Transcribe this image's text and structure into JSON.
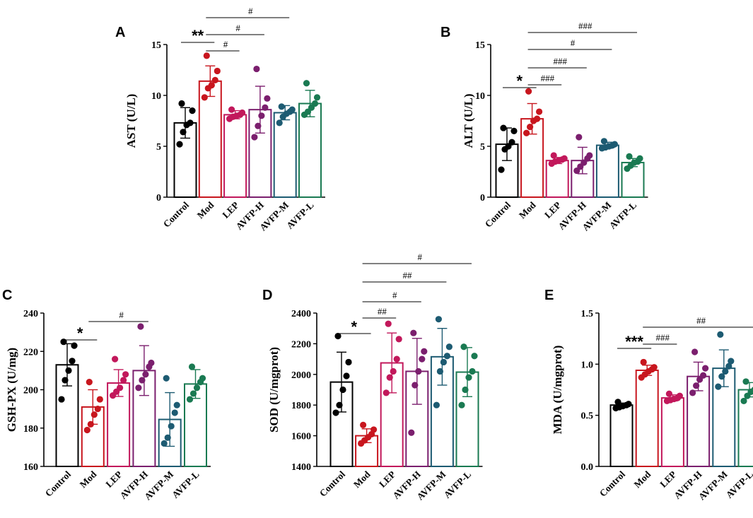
{
  "groups": [
    "Control",
    "Mod",
    "LEP",
    "AVFP-H",
    "AVFP-M",
    "AVFP-L"
  ],
  "colors": [
    "#000000",
    "#c8161e",
    "#c2185b",
    "#7b1f6e",
    "#1d5b72",
    "#1a7a52"
  ],
  "chart_data": [
    {
      "id": "A",
      "type": "bar",
      "letter": "A",
      "ylabel": "AST (U/L)",
      "ylim": [
        0,
        15
      ],
      "yticks": [
        0,
        5,
        10,
        15
      ],
      "ytick_labels": [
        "0",
        "5",
        "10",
        "15"
      ],
      "categories": [
        "Control",
        "Mod",
        "LEP",
        "AVFP-H",
        "AVFP-M",
        "AVFP-L"
      ],
      "means": [
        7.3,
        11.4,
        8.1,
        8.6,
        8.3,
        9.2
      ],
      "sds": [
        1.5,
        1.5,
        0.4,
        2.3,
        0.7,
        1.3
      ],
      "points": [
        [
          5.2,
          6.4,
          7.1,
          7.3,
          8.5,
          9.2
        ],
        [
          9.8,
          10.7,
          11.0,
          11.5,
          12.4,
          13.9
        ],
        [
          7.7,
          7.9,
          8.0,
          8.1,
          8.3,
          8.6
        ],
        [
          5.9,
          7.0,
          8.0,
          8.8,
          9.7,
          12.6
        ],
        [
          7.3,
          7.9,
          8.2,
          8.4,
          8.6,
          8.9
        ],
        [
          8.1,
          8.4,
          8.8,
          9.2,
          9.8,
          11.2
        ]
      ],
      "sig": [
        {
          "label": "**",
          "from": 0,
          "to": 1,
          "kind": "star"
        },
        {
          "label": "#",
          "from": 1,
          "to": 2,
          "kind": "hash"
        },
        {
          "label": "#",
          "from": 1,
          "to": 3,
          "kind": "hash"
        },
        {
          "label": "#",
          "from": 1,
          "to": 4,
          "kind": "hash"
        }
      ]
    },
    {
      "id": "B",
      "type": "bar",
      "letter": "B",
      "ylabel": "ALT (U/L)",
      "ylim": [
        0,
        15
      ],
      "yticks": [
        0,
        5,
        10,
        15
      ],
      "ytick_labels": [
        "0",
        "5",
        "10",
        "15"
      ],
      "categories": [
        "Control",
        "Mod",
        "LEP",
        "AVFP-H",
        "AVFP-M",
        "AVFP-L"
      ],
      "means": [
        5.2,
        7.7,
        3.6,
        3.6,
        5.1,
        3.4
      ],
      "sds": [
        1.6,
        1.5,
        0.3,
        1.3,
        0.3,
        0.4
      ],
      "points": [
        [
          2.7,
          4.7,
          5.0,
          5.4,
          6.5,
          6.8
        ],
        [
          6.3,
          6.9,
          7.5,
          7.7,
          8.4,
          10.4
        ],
        [
          3.3,
          3.5,
          3.6,
          3.7,
          3.8,
          4.1
        ],
        [
          2.6,
          3.0,
          3.4,
          3.8,
          4.1,
          5.9
        ],
        [
          4.8,
          4.9,
          5.0,
          5.1,
          5.2,
          5.5
        ],
        [
          2.8,
          3.1,
          3.4,
          3.5,
          3.8,
          4.0
        ]
      ],
      "sig": [
        {
          "label": "*",
          "from": 0,
          "to": 1,
          "kind": "star"
        },
        {
          "label": "###",
          "from": 1,
          "to": 2,
          "kind": "hash"
        },
        {
          "label": "###",
          "from": 1,
          "to": 3,
          "kind": "hash"
        },
        {
          "label": "#",
          "from": 1,
          "to": 4,
          "kind": "hash"
        },
        {
          "label": "###",
          "from": 1,
          "to": 5,
          "kind": "hash"
        }
      ]
    },
    {
      "id": "C",
      "type": "bar",
      "letter": "C",
      "ylabel": "GSH-PX (U/mg)",
      "ylim": [
        160,
        240
      ],
      "yticks": [
        160,
        180,
        200,
        220,
        240
      ],
      "ytick_labels": [
        "160",
        "180",
        "200",
        "220",
        "240"
      ],
      "categories": [
        "Control",
        "Mod",
        "LEP",
        "AVFP-H",
        "AVFP-M",
        "AVFP-L"
      ],
      "means": [
        213,
        191,
        203.5,
        210,
        184.5,
        203
      ],
      "sds": [
        11,
        9,
        7,
        13,
        14,
        7.5
      ],
      "points": [
        [
          195,
          205,
          210,
          215,
          223,
          225
        ],
        [
          179,
          182,
          187,
          190,
          195,
          204
        ],
        [
          197,
          199,
          201,
          205,
          208,
          216
        ],
        [
          201,
          205,
          208,
          212,
          214,
          233
        ],
        [
          172,
          175,
          181,
          188,
          192,
          206
        ],
        [
          195,
          198,
          201,
          204,
          206,
          212
        ]
      ],
      "sig": [
        {
          "label": "*",
          "from": 0,
          "to": 1,
          "kind": "star"
        },
        {
          "label": "#",
          "from": 1,
          "to": 3,
          "kind": "hash"
        }
      ]
    },
    {
      "id": "D",
      "type": "bar",
      "letter": "D",
      "ylabel": "SOD (U/mgprot)",
      "ylim": [
        1400,
        2400
      ],
      "yticks": [
        1400,
        1600,
        1800,
        2000,
        2200,
        2400
      ],
      "ytick_labels": [
        "1400",
        "1600",
        "1800",
        "2000",
        "2200",
        "2400"
      ],
      "categories": [
        "Control",
        "Mod",
        "LEP",
        "AVFP-H",
        "AVFP-M",
        "AVFP-L"
      ],
      "means": [
        1950,
        1600,
        2075,
        2020,
        2115,
        2015
      ],
      "sds": [
        195,
        45,
        195,
        215,
        185,
        160
      ],
      "points": [
        [
          1750,
          1800,
          1900,
          1990,
          2080,
          2250
        ],
        [
          1550,
          1570,
          1590,
          1610,
          1640,
          1670
        ],
        [
          1880,
          1980,
          2020,
          2100,
          2230,
          2330
        ],
        [
          1620,
          1930,
          2020,
          2100,
          2150,
          2270
        ],
        [
          1800,
          2020,
          2080,
          2120,
          2180,
          2360
        ],
        [
          1800,
          1900,
          1980,
          2020,
          2120,
          2180
        ]
      ],
      "sig": [
        {
          "label": "*",
          "from": 0,
          "to": 1,
          "kind": "star"
        },
        {
          "label": "##",
          "from": 1,
          "to": 2,
          "kind": "hash"
        },
        {
          "label": "#",
          "from": 1,
          "to": 3,
          "kind": "hash"
        },
        {
          "label": "##",
          "from": 1,
          "to": 4,
          "kind": "hash"
        },
        {
          "label": "#",
          "from": 1,
          "to": 5,
          "kind": "hash"
        }
      ]
    },
    {
      "id": "E",
      "type": "bar",
      "letter": "E",
      "ylabel": "MDA (U/mgprot)",
      "ylim": [
        0,
        1.5
      ],
      "yticks": [
        0,
        0.5,
        1.0,
        1.5
      ],
      "ytick_labels": [
        "0.0",
        "0.5",
        "1.0",
        "1.5"
      ],
      "categories": [
        "Control",
        "Mod",
        "LEP",
        "AVFP-H",
        "AVFP-M",
        "AVFP-L"
      ],
      "means": [
        0.6,
        0.94,
        0.67,
        0.88,
        0.96,
        0.75
      ],
      "sds": [
        0.02,
        0.05,
        0.03,
        0.14,
        0.18,
        0.07
      ],
      "points": [
        [
          0.57,
          0.58,
          0.59,
          0.6,
          0.61,
          0.63
        ],
        [
          0.87,
          0.9,
          0.93,
          0.95,
          0.97,
          1.02
        ],
        [
          0.64,
          0.65,
          0.66,
          0.67,
          0.69,
          0.71
        ],
        [
          0.72,
          0.79,
          0.85,
          0.89,
          0.96,
          1.12
        ],
        [
          0.78,
          0.88,
          0.93,
          0.98,
          1.03,
          1.29
        ],
        [
          0.64,
          0.69,
          0.73,
          0.75,
          0.79,
          0.83
        ]
      ],
      "sig": [
        {
          "label": "***",
          "from": 0,
          "to": 1,
          "kind": "star"
        },
        {
          "label": "###",
          "from": 1,
          "to": 2,
          "kind": "hash"
        },
        {
          "label": "##",
          "from": 1,
          "to": 5,
          "kind": "hash"
        }
      ]
    }
  ]
}
